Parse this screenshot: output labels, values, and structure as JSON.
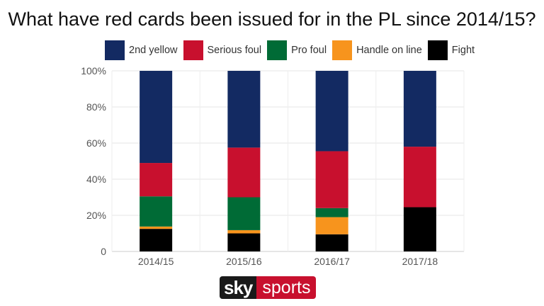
{
  "title": "What have red cards been issued for in the PL since 2014/15?",
  "logo": {
    "sky": "sky",
    "sports": "sports"
  },
  "chart_data": {
    "type": "bar",
    "stacked": true,
    "title": "What have red cards been issued for in the PL since 2014/15?",
    "categories": [
      "2014/15",
      "2015/16",
      "2016/17",
      "2017/18"
    ],
    "ylim": [
      0,
      100
    ],
    "yticks": [
      "0",
      "20%",
      "40%",
      "60%",
      "80%",
      "100%"
    ],
    "grid": true,
    "legend_position": "top",
    "series": [
      {
        "name": "Fight",
        "color": "#000000",
        "values": [
          12.5,
          10,
          9.5,
          24.5
        ]
      },
      {
        "name": "Handle on line",
        "color": "#f7941d",
        "values": [
          1.3,
          1.8,
          9.5,
          0
        ]
      },
      {
        "name": "Pro foul",
        "color": "#006b36",
        "values": [
          16.7,
          18.2,
          5,
          0
        ]
      },
      {
        "name": "Serious foul",
        "color": "#c8102e",
        "values": [
          18.5,
          27.5,
          31.5,
          33.5
        ]
      },
      {
        "name": "2nd yellow",
        "color": "#132a62",
        "values": [
          51,
          42.5,
          44.5,
          42
        ]
      }
    ],
    "legend_order": [
      "2nd yellow",
      "Serious foul",
      "Pro foul",
      "Handle on line",
      "Fight"
    ]
  }
}
